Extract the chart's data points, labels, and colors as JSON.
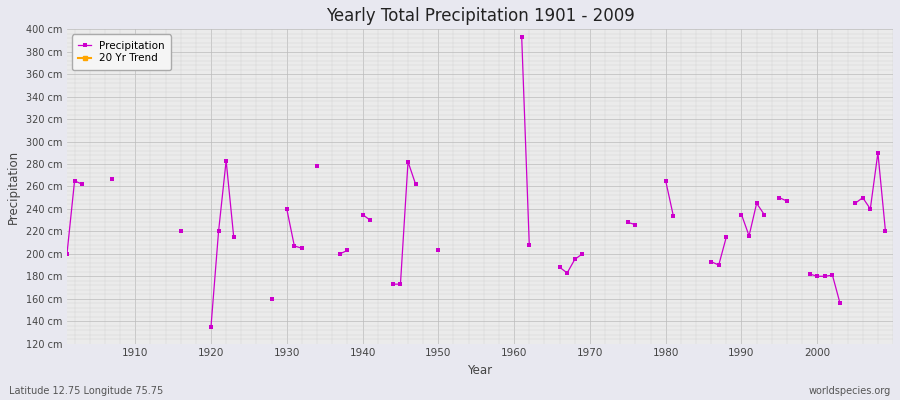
{
  "title": "Yearly Total Precipitation 1901 - 2009",
  "xlabel": "Year",
  "ylabel": "Precipitation",
  "lat_lon_label": "Latitude 12.75 Longitude 75.75",
  "watermark": "worldspecies.org",
  "ylim": [
    120,
    400
  ],
  "ytick_step": 20,
  "line_color": "#cc00cc",
  "marker_color": "#cc00cc",
  "trend_color": "#ffa500",
  "bg_color": "#e8e8f0",
  "plot_bg_color": "#ebebeb",
  "years": [
    1901,
    1902,
    1903,
    1904,
    1905,
    1906,
    1907,
    1908,
    1909,
    1910,
    1911,
    1912,
    1913,
    1914,
    1915,
    1916,
    1917,
    1918,
    1919,
    1920,
    1921,
    1922,
    1923,
    1924,
    1925,
    1926,
    1927,
    1928,
    1929,
    1930,
    1931,
    1932,
    1933,
    1934,
    1935,
    1936,
    1937,
    1938,
    1939,
    1940,
    1941,
    1942,
    1943,
    1944,
    1945,
    1946,
    1947,
    1948,
    1949,
    1950,
    1951,
    1952,
    1953,
    1954,
    1955,
    1956,
    1957,
    1958,
    1959,
    1960,
    1961,
    1962,
    1963,
    1964,
    1965,
    1966,
    1967,
    1968,
    1969,
    1970,
    1971,
    1972,
    1973,
    1974,
    1975,
    1976,
    1977,
    1978,
    1979,
    1980,
    1981,
    1982,
    1983,
    1984,
    1985,
    1986,
    1987,
    1988,
    1989,
    1990,
    1991,
    1992,
    1993,
    1994,
    1995,
    1996,
    1997,
    1998,
    1999,
    2000,
    2001,
    2002,
    2003,
    2004,
    2005,
    2006,
    2007,
    2008,
    2009
  ],
  "precip": [
    200,
    265,
    262,
    null,
    null,
    null,
    267,
    null,
    null,
    null,
    null,
    null,
    null,
    null,
    null,
    220,
    null,
    null,
    null,
    135,
    220,
    283,
    215,
    null,
    null,
    null,
    null,
    160,
    null,
    240,
    207,
    205,
    null,
    278,
    null,
    null,
    200,
    203,
    null,
    235,
    230,
    null,
    null,
    173,
    173,
    282,
    262,
    null,
    null,
    203,
    null,
    null,
    null,
    null,
    null,
    null,
    null,
    null,
    null,
    null,
    393,
    208,
    null,
    null,
    null,
    188,
    183,
    195,
    200,
    null,
    null,
    null,
    null,
    null,
    228,
    226,
    null,
    null,
    null,
    265,
    234,
    null,
    null,
    null,
    null,
    193,
    190,
    215,
    null,
    235,
    216,
    245,
    235,
    null,
    250,
    247,
    null,
    null,
    182,
    180,
    180,
    181,
    156,
    null,
    245,
    250,
    240,
    290,
    220
  ]
}
